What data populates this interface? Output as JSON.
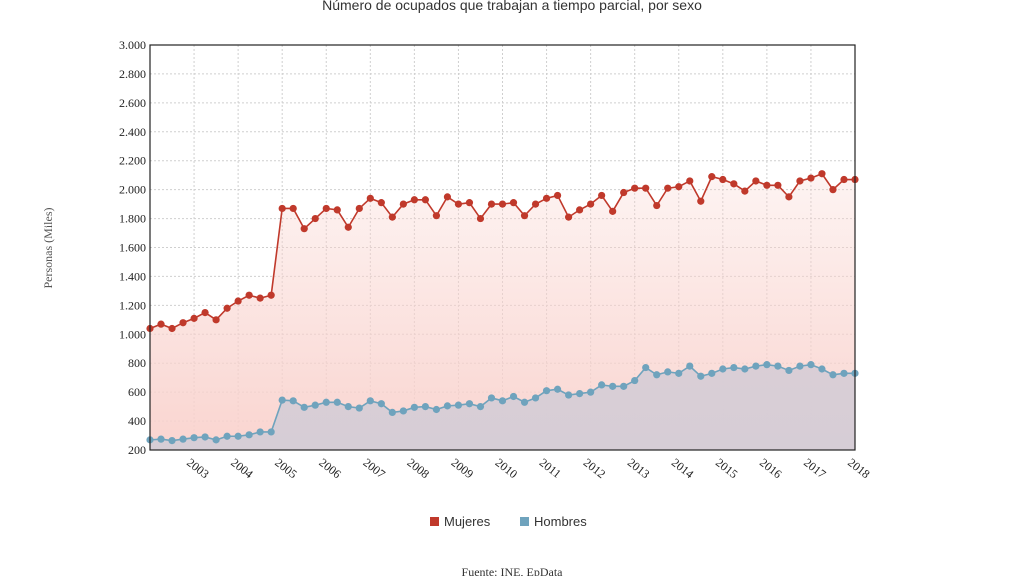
{
  "chart_data": {
    "type": "area",
    "title": "Número de ocupados que trabajan a tiempo parcial, por sexo",
    "ylabel": "Personas (Miles)",
    "source": "Fuente: INE, EpData",
    "ylim": [
      200,
      3000
    ],
    "yticks": [
      "3.000",
      "2.800",
      "2.600",
      "2.400",
      "2.200",
      "2.000",
      "1.800",
      "1.600",
      "1.400",
      "1.200",
      "1.000",
      "800",
      "600",
      "400",
      "200"
    ],
    "ytick_values": [
      3000,
      2800,
      2600,
      2400,
      2200,
      2000,
      1800,
      1600,
      1400,
      1200,
      1000,
      800,
      600,
      400,
      200
    ],
    "xlim": [
      2002.0,
      2018.0
    ],
    "xticks": [
      "2003",
      "2004",
      "2005",
      "2006",
      "2007",
      "2008",
      "2009",
      "2010",
      "2011",
      "2012",
      "2013",
      "2014",
      "2015",
      "2016",
      "2017",
      "2018"
    ],
    "xtick_values": [
      2003,
      2004,
      2005,
      2006,
      2007,
      2008,
      2009,
      2010,
      2011,
      2012,
      2013,
      2014,
      2015,
      2016,
      2017,
      2018
    ],
    "grid": true,
    "legend_position": "bottom",
    "series": [
      {
        "name": "Mujeres",
        "color": "#c0392b",
        "fill_color": "#f9d2cd",
        "x": [
          2002.0,
          2002.25,
          2002.5,
          2002.75,
          2003.0,
          2003.25,
          2003.5,
          2003.75,
          2004.0,
          2004.25,
          2004.5,
          2004.75,
          2005.0,
          2005.25,
          2005.5,
          2005.75,
          2006.0,
          2006.25,
          2006.5,
          2006.75,
          2007.0,
          2007.25,
          2007.5,
          2007.75,
          2008.0,
          2008.25,
          2008.5,
          2008.75,
          2009.0,
          2009.25,
          2009.5,
          2009.75,
          2010.0,
          2010.25,
          2010.5,
          2010.75,
          2011.0,
          2011.25,
          2011.5,
          2011.75,
          2012.0,
          2012.25,
          2012.5,
          2012.75,
          2013.0,
          2013.25,
          2013.5,
          2013.75,
          2014.0,
          2014.25,
          2014.5,
          2014.75,
          2015.0,
          2015.25,
          2015.5,
          2015.75,
          2016.0,
          2016.25,
          2016.5,
          2016.75,
          2017.0,
          2017.25,
          2017.5,
          2017.75,
          2018.0
        ],
        "values": [
          1040,
          1070,
          1040,
          1080,
          1110,
          1150,
          1100,
          1180,
          1230,
          1270,
          1250,
          1270,
          1870,
          1870,
          1730,
          1800,
          1870,
          1860,
          1740,
          1870,
          1940,
          1910,
          1810,
          1900,
          1930,
          1930,
          1820,
          1950,
          1900,
          1910,
          1800,
          1900,
          1900,
          1910,
          1820,
          1900,
          1940,
          1960,
          1810,
          1860,
          1900,
          1960,
          1850,
          1980,
          2010,
          2010,
          1890,
          2010,
          2020,
          2060,
          1920,
          2090,
          2070,
          2040,
          1990,
          2060,
          2030,
          2030,
          1950,
          2060,
          2080,
          2110,
          2000,
          2070,
          2070
        ]
      },
      {
        "name": "Hombres",
        "color": "#6fa3bd",
        "fill_color": "#d6cdd6",
        "x": [
          2002.0,
          2002.25,
          2002.5,
          2002.75,
          2003.0,
          2003.25,
          2003.5,
          2003.75,
          2004.0,
          2004.25,
          2004.5,
          2004.75,
          2005.0,
          2005.25,
          2005.5,
          2005.75,
          2006.0,
          2006.25,
          2006.5,
          2006.75,
          2007.0,
          2007.25,
          2007.5,
          2007.75,
          2008.0,
          2008.25,
          2008.5,
          2008.75,
          2009.0,
          2009.25,
          2009.5,
          2009.75,
          2010.0,
          2010.25,
          2010.5,
          2010.75,
          2011.0,
          2011.25,
          2011.5,
          2011.75,
          2012.0,
          2012.25,
          2012.5,
          2012.75,
          2013.0,
          2013.25,
          2013.5,
          2013.75,
          2014.0,
          2014.25,
          2014.5,
          2014.75,
          2015.0,
          2015.25,
          2015.5,
          2015.75,
          2016.0,
          2016.25,
          2016.5,
          2016.75,
          2017.0,
          2017.25,
          2017.5,
          2017.75,
          2018.0
        ],
        "values": [
          270,
          275,
          265,
          275,
          285,
          290,
          270,
          295,
          295,
          305,
          325,
          325,
          545,
          540,
          495,
          510,
          530,
          530,
          500,
          490,
          540,
          520,
          460,
          470,
          495,
          500,
          480,
          505,
          510,
          520,
          500,
          560,
          540,
          570,
          530,
          560,
          610,
          620,
          580,
          590,
          600,
          650,
          640,
          640,
          680,
          770,
          720,
          740,
          730,
          780,
          710,
          730,
          760,
          770,
          760,
          780,
          790,
          780,
          750,
          780,
          790,
          760,
          720,
          730,
          730
        ]
      }
    ]
  }
}
